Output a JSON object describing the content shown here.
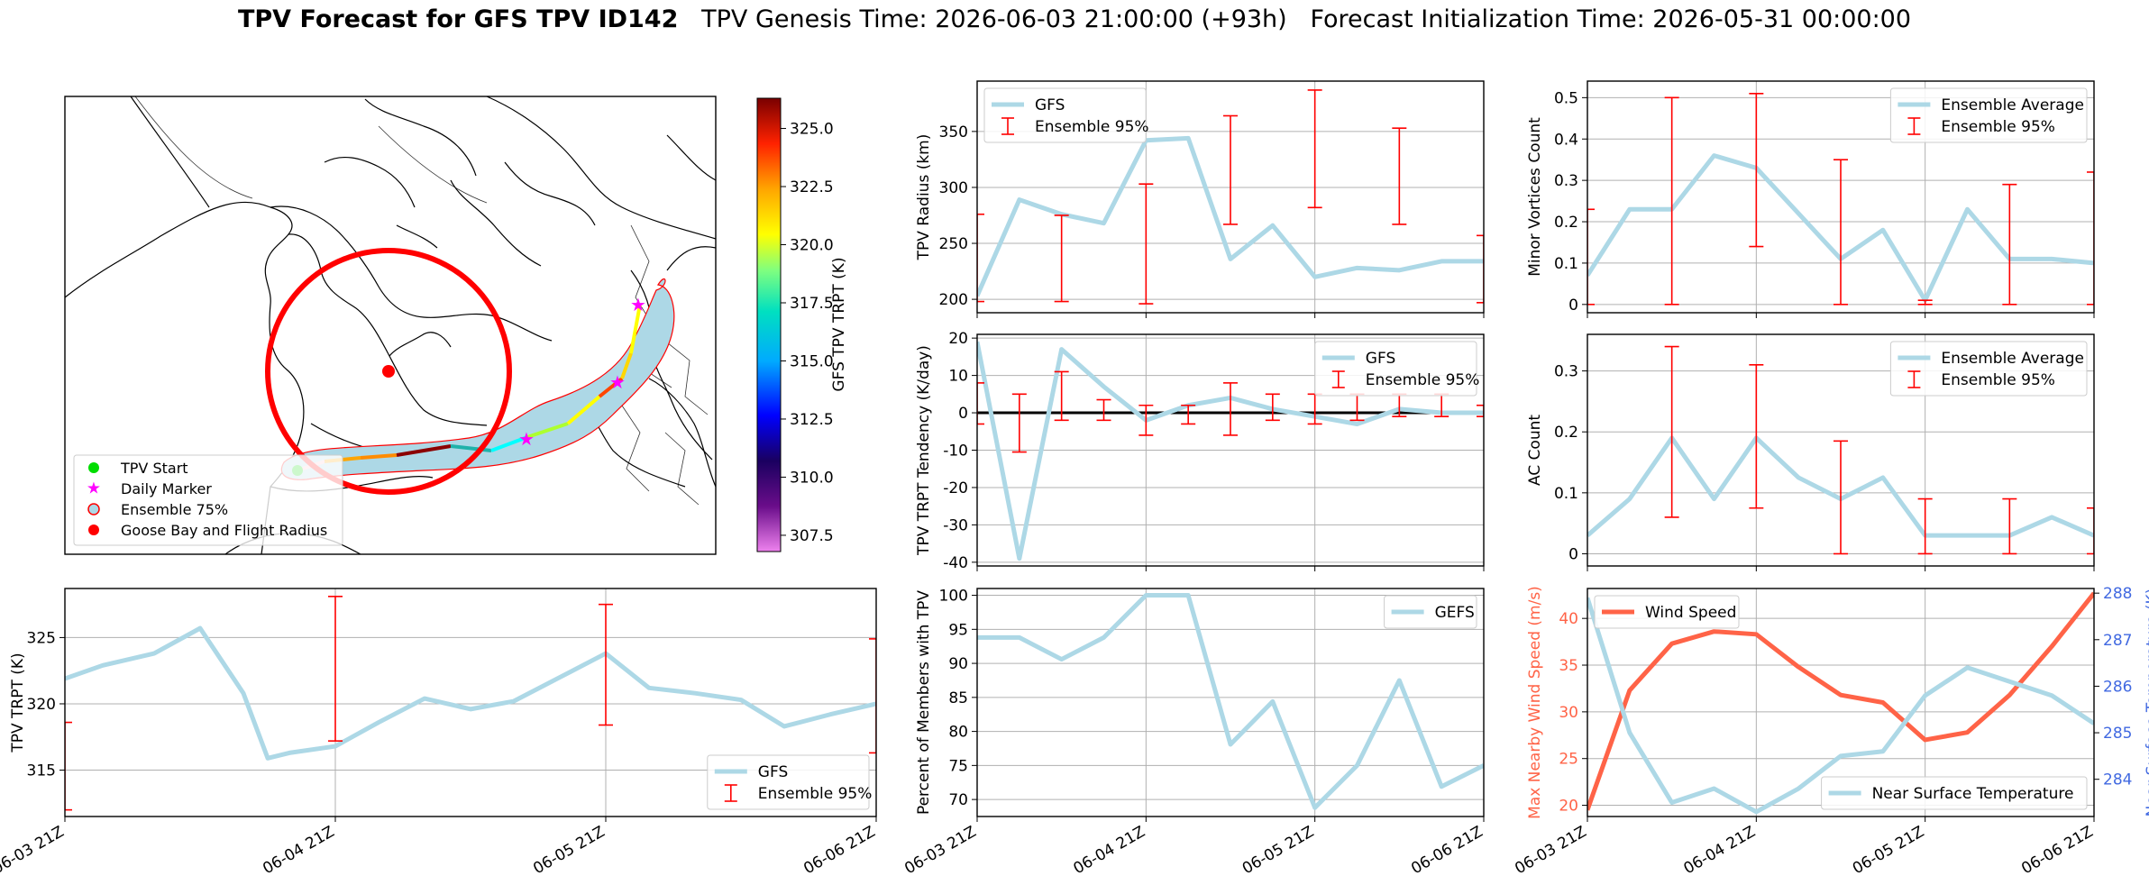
{
  "title": {
    "main": "TPV Forecast for GFS TPV ID142",
    "genesis": "TPV Genesis Time: 2026-06-03 21:00:00 (+93h)",
    "init": "Forecast Initialization Time: 2026-05-31 00:00:00"
  },
  "colors": {
    "gfs": "#add8e6",
    "ensemble": "#ff0000",
    "wind": "#ff6347",
    "temp_axis": "#4169e1"
  },
  "time_ticks": [
    "06-03 21Z",
    "06-04 21Z",
    "06-05 21Z",
    "06-06 21Z"
  ],
  "map_panel": {
    "legend": [
      "TPV Start",
      "Daily Marker",
      "Ensemble 75%",
      "Goose Bay and Flight Radius"
    ],
    "colorbar": {
      "label": "GFS TPV TRPT (K)",
      "ticks": [
        "307.5",
        "310.0",
        "312.5",
        "315.0",
        "317.5",
        "320.0",
        "322.5",
        "325.0"
      ],
      "range": [
        306.8,
        326.3
      ]
    }
  },
  "chart_data": [
    {
      "id": "trpt",
      "type": "line",
      "ylabel": "TPV TRPT (K)",
      "ylim": [
        311.5,
        328.7
      ],
      "yticks": [
        315,
        320,
        325
      ],
      "legend_position": "lower-right",
      "series": [
        {
          "name": "GFS",
          "kind": "line",
          "x": [
            0,
            0.14,
            0.33,
            0.5,
            0.66,
            0.75,
            0.83,
            1.0,
            1.16,
            1.33,
            1.5,
            1.66,
            1.83,
            2.0,
            2.16,
            2.33,
            2.5,
            2.66,
            2.83,
            3.0
          ],
          "y": [
            321.9,
            322.9,
            323.8,
            325.7,
            320.8,
            315.9,
            316.3,
            316.8,
            318.6,
            320.4,
            319.6,
            320.2,
            322.0,
            323.8,
            321.2,
            320.8,
            320.3,
            318.3,
            319.2,
            320.0
          ]
        },
        {
          "name": "Ensemble 95%",
          "kind": "errorbar",
          "x": [
            0,
            1,
            2,
            3,
            4,
            5,
            6
          ],
          "low": [
            312.0,
            317.2,
            318.4,
            316.3,
            315.5,
            317.8,
            318.8
          ],
          "high": [
            318.6,
            328.1,
            327.5,
            324.9,
            323.2,
            324.1,
            324.9
          ]
        }
      ]
    },
    {
      "id": "radius",
      "type": "line",
      "ylabel": "TPV Radius (km)",
      "ylim": [
        188,
        395
      ],
      "yticks": [
        200,
        250,
        300,
        350
      ],
      "legend_position": "upper-left",
      "series": [
        {
          "name": "GFS",
          "kind": "line",
          "x": [
            0,
            0.25,
            0.5,
            0.75,
            1.0,
            1.25,
            1.5,
            1.75,
            2.0,
            2.25,
            2.5,
            2.75,
            3.0
          ],
          "y": [
            203,
            289,
            276,
            268,
            342,
            344,
            236,
            266,
            220,
            228,
            226,
            234,
            234
          ]
        },
        {
          "name": "Ensemble 95%",
          "kind": "errorbar",
          "x": [
            0,
            0.5,
            1.0,
            1.5,
            2.0,
            2.5,
            3.0
          ],
          "low": [
            198,
            198,
            196,
            267,
            282,
            267,
            197
          ],
          "high": [
            276,
            275,
            303,
            364,
            387,
            353,
            257
          ]
        }
      ]
    },
    {
      "id": "minor",
      "type": "line",
      "ylabel": "Minor Vortices Count",
      "ylim": [
        -0.02,
        0.54
      ],
      "yticks": [
        0.0,
        0.1,
        0.2,
        0.3,
        0.4,
        0.5
      ],
      "legend_position": "upper-right",
      "series": [
        {
          "name": "Ensemble Average",
          "kind": "line",
          "x": [
            0,
            0.25,
            0.5,
            0.75,
            1.0,
            1.25,
            1.5,
            1.75,
            2.0,
            2.25,
            2.5,
            2.75,
            3.0
          ],
          "y": [
            0.07,
            0.23,
            0.23,
            0.36,
            0.33,
            0.22,
            0.11,
            0.18,
            0.01,
            0.23,
            0.11,
            0.11,
            0.1
          ]
        },
        {
          "name": "Ensemble 95%",
          "kind": "errorbar",
          "x": [
            0,
            0.5,
            1.0,
            1.5,
            2.0,
            2.5,
            3.0
          ],
          "low": [
            0.0,
            0.0,
            0.14,
            0.0,
            0.0,
            0.0,
            0.0
          ],
          "high": [
            0.23,
            0.5,
            0.51,
            0.35,
            0.01,
            0.29,
            0.32
          ]
        }
      ]
    },
    {
      "id": "tendency",
      "type": "line",
      "ylabel": "TPV TRPT Tendency (K/day)",
      "ylim": [
        -41,
        21
      ],
      "yticks": [
        -40,
        -30,
        -20,
        -10,
        0,
        10,
        20
      ],
      "zero_line": true,
      "legend_position": "upper-right",
      "series": [
        {
          "name": "GFS",
          "kind": "line",
          "x": [
            0,
            0.25,
            0.5,
            0.75,
            1.0,
            1.25,
            1.5,
            1.75,
            2.0,
            2.25,
            2.5,
            2.75,
            3.0
          ],
          "y": [
            19,
            -39,
            17,
            7,
            -2,
            2,
            4,
            1,
            -1,
            -3,
            1,
            0,
            0
          ]
        },
        {
          "name": "Ensemble 95%",
          "kind": "errorbar",
          "x": [
            0,
            0.25,
            0.5,
            0.75,
            1.0,
            1.25,
            1.5,
            1.75,
            2.0,
            2.25,
            2.5,
            2.75,
            3.0
          ],
          "low": [
            -3,
            -10.5,
            -2,
            -2,
            -6,
            -3,
            -6,
            -2,
            -3,
            -2,
            -1,
            -1,
            -1
          ],
          "high": [
            8,
            5,
            11,
            3.5,
            2,
            2,
            8,
            5,
            5,
            5,
            5,
            5,
            2
          ]
        }
      ]
    },
    {
      "id": "ac",
      "type": "line",
      "ylabel": "AC Count",
      "ylim": [
        -0.02,
        0.36
      ],
      "yticks": [
        0.0,
        0.1,
        0.2,
        0.3
      ],
      "legend_position": "upper-right",
      "series": [
        {
          "name": "Ensemble Average",
          "kind": "line",
          "x": [
            0,
            0.25,
            0.5,
            0.75,
            1.0,
            1.25,
            1.5,
            1.75,
            2.0,
            2.25,
            2.5,
            2.75,
            3.0
          ],
          "y": [
            0.03,
            0.09,
            0.19,
            0.09,
            0.19,
            0.125,
            0.09,
            0.125,
            0.03,
            0.03,
            0.03,
            0.06,
            0.03
          ]
        },
        {
          "name": "Ensemble 95%",
          "kind": "errorbar",
          "x": [
            0.5,
            1.0,
            1.5,
            2.0,
            2.5,
            3.0
          ],
          "low": [
            0.06,
            0.075,
            0.0,
            0.0,
            0.0,
            0.0
          ],
          "high": [
            0.34,
            0.31,
            0.185,
            0.09,
            0.09,
            0.075
          ]
        }
      ]
    },
    {
      "id": "members",
      "type": "line",
      "ylabel": "Percent of Members with TPV",
      "ylim": [
        67.5,
        101
      ],
      "yticks": [
        70,
        75,
        80,
        85,
        90,
        95,
        100
      ],
      "legend_position": "upper-right",
      "series": [
        {
          "name": "GEFS",
          "kind": "line",
          "x": [
            0,
            0.25,
            0.5,
            0.75,
            1.0,
            1.25,
            1.5,
            1.75,
            2.0,
            2.25,
            2.5,
            2.75,
            3.0
          ],
          "y": [
            93.8,
            93.8,
            90.6,
            93.8,
            100,
            100,
            78.1,
            84.4,
            68.8,
            75.0,
            87.5,
            71.9,
            75.0
          ]
        }
      ]
    },
    {
      "id": "wind_temp",
      "type": "line",
      "ylabel": "Max Nearby Wind Speed (m/s)",
      "ylim": [
        18.8,
        43.2
      ],
      "yticks": [
        20,
        25,
        30,
        35,
        40
      ],
      "y2label": "Near Surface Temperature (K)",
      "y2lim": [
        283.2,
        288.1
      ],
      "y2ticks": [
        284,
        285,
        286,
        287,
        288
      ],
      "series": [
        {
          "name": "Wind Speed",
          "kind": "line",
          "axis": "left",
          "x": [
            0,
            0.25,
            0.5,
            0.75,
            1.0,
            1.25,
            1.5,
            1.75,
            2.0,
            2.25,
            2.5,
            2.75,
            3.0
          ],
          "y": [
            19.5,
            32.3,
            37.3,
            38.6,
            38.3,
            34.8,
            31.8,
            31.0,
            27.0,
            27.8,
            31.8,
            37.0,
            42.7
          ]
        },
        {
          "name": "Near Surface Temperature",
          "kind": "line",
          "axis": "right",
          "x": [
            0,
            0.25,
            0.5,
            0.75,
            1.0,
            1.25,
            1.5,
            1.75,
            2.0,
            2.25,
            2.5,
            2.75,
            3.0
          ],
          "y": [
            287.9,
            285.0,
            283.5,
            283.8,
            283.3,
            283.8,
            284.5,
            284.6,
            285.8,
            286.4,
            286.1,
            285.8,
            285.2
          ]
        }
      ]
    }
  ]
}
